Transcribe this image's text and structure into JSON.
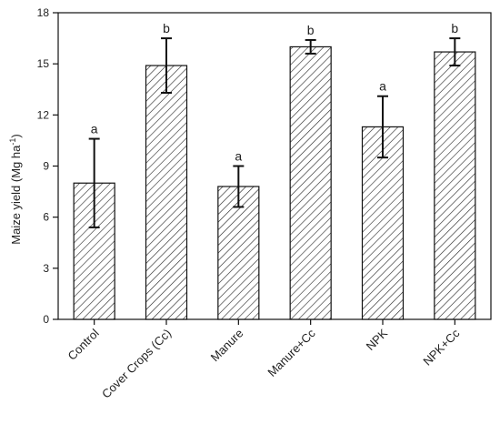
{
  "chart_data": {
    "type": "bar",
    "title": "",
    "xlabel": "",
    "ylabel": "Maize yield (Mg ha",
    "ylabel_sup": "-1",
    "ylabel_close": ")",
    "ylim": [
      0,
      18
    ],
    "yticks": [
      0,
      3,
      6,
      9,
      12,
      15,
      18
    ],
    "grid": false,
    "categories": [
      "Control",
      "Cover Crops (Cc)",
      "Manure",
      "Manure+Cc",
      "NPK",
      "NPK+Cc"
    ],
    "values": [
      8.0,
      14.9,
      7.8,
      16.0,
      11.3,
      15.7
    ],
    "error_low": [
      5.4,
      13.3,
      6.6,
      15.6,
      9.5,
      14.9
    ],
    "error_high": [
      10.6,
      16.5,
      9.0,
      16.4,
      13.1,
      16.5
    ],
    "significance": [
      "a",
      "b",
      "a",
      "b",
      "a",
      "b"
    ],
    "colors": {
      "bar_stroke": "#111111",
      "hatch": "#222222",
      "background": "#ffffff"
    }
  }
}
